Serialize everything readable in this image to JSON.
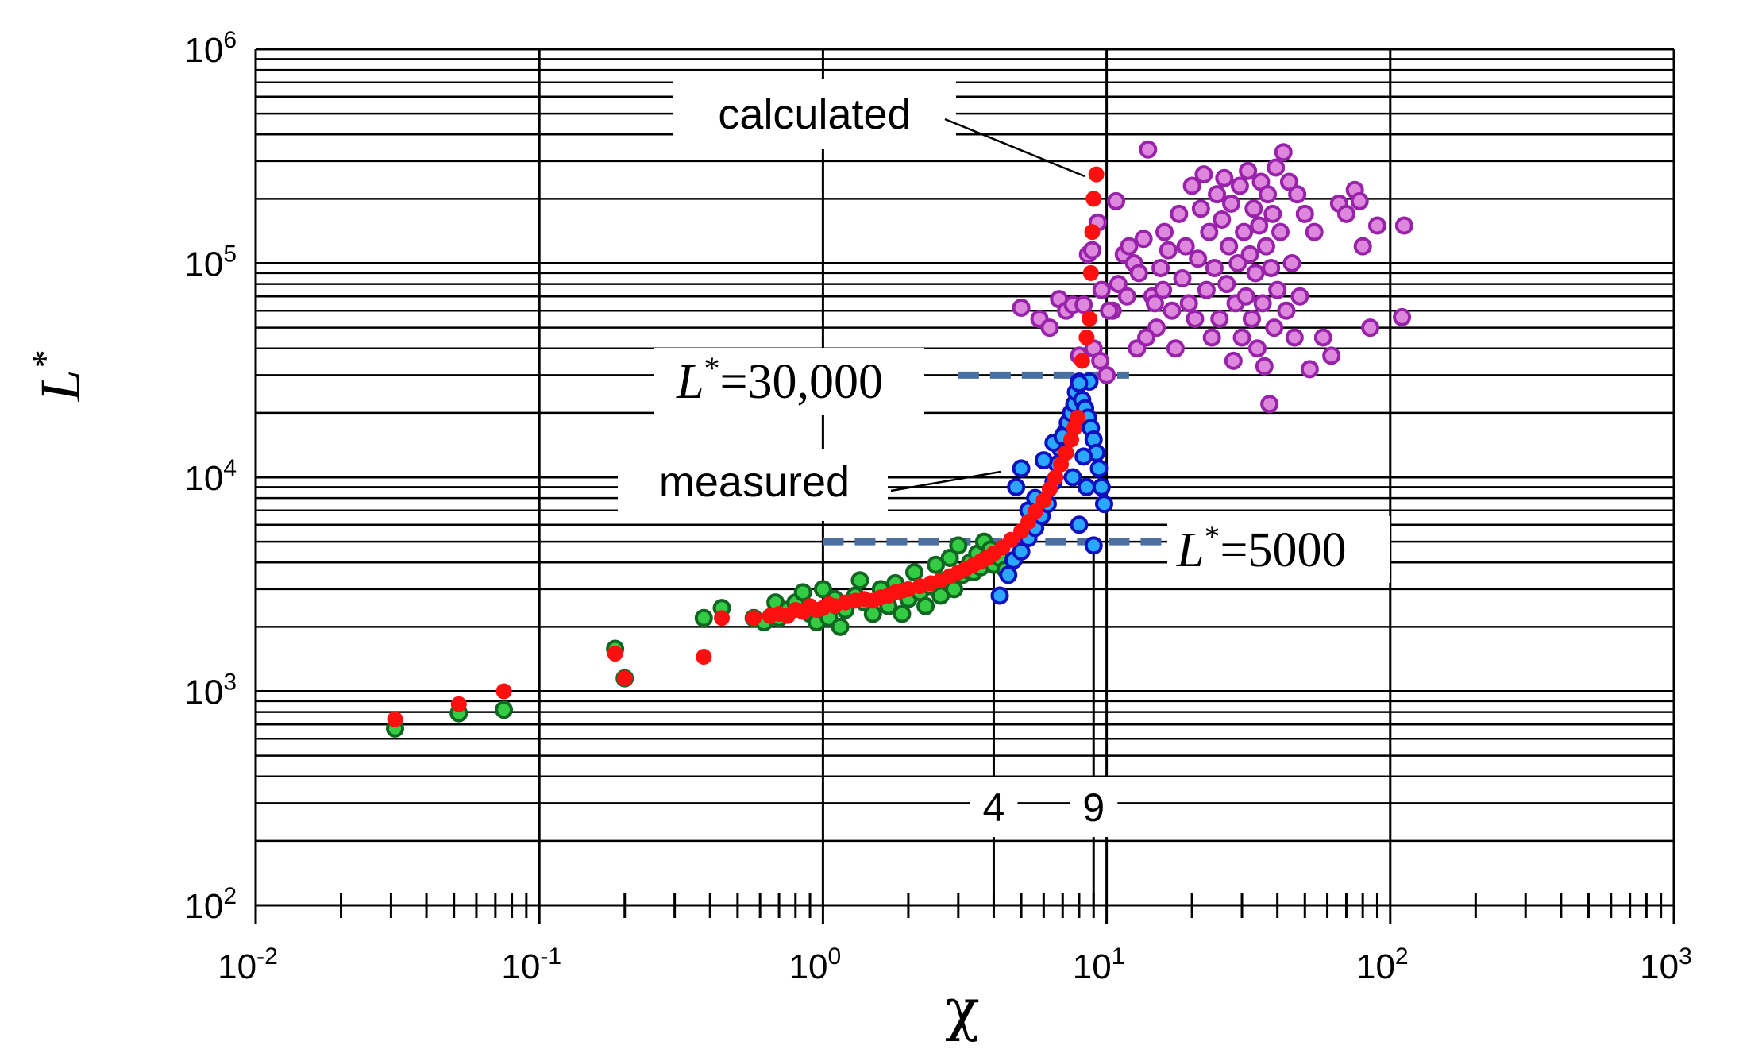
{
  "chart_data": {
    "type": "scatter",
    "x_scale": "log",
    "y_scale": "log",
    "xlim": [
      0.01,
      1000
    ],
    "ylim": [
      100,
      1000000
    ],
    "xlabel": "χ",
    "ylabel": "L",
    "ylabel_sup": "*",
    "x_ticks": [
      {
        "base": "10",
        "exp": "-2",
        "value": 0.01
      },
      {
        "base": "10",
        "exp": "-1",
        "value": 0.1
      },
      {
        "base": "10",
        "exp": "0",
        "value": 1
      },
      {
        "base": "10",
        "exp": "1",
        "value": 10
      },
      {
        "base": "10",
        "exp": "2",
        "value": 100
      },
      {
        "base": "10",
        "exp": "3",
        "value": 1000
      }
    ],
    "y_ticks": [
      {
        "base": "10",
        "exp": "2",
        "value": 100
      },
      {
        "base": "10",
        "exp": "3",
        "value": 1000
      },
      {
        "base": "10",
        "exp": "4",
        "value": 10000
      },
      {
        "base": "10",
        "exp": "5",
        "value": 100000
      },
      {
        "base": "10",
        "exp": "6",
        "value": 1000000
      }
    ],
    "vertical_markers": [
      {
        "label": "4",
        "x": 4
      },
      {
        "label": "9",
        "x": 9
      }
    ],
    "reference_lines": [
      {
        "name": "L*=30,000",
        "y": 30000,
        "x_range": [
          3,
          12
        ],
        "color": "#4a6fa0"
      },
      {
        "name": "L*=5000",
        "y": 5000,
        "x_range": [
          1.0,
          16
        ],
        "color": "#4a6fa0"
      }
    ],
    "annotations": {
      "calculated": "calculated",
      "measured": "measured",
      "ref_30000_letter": "L",
      "ref_30000_sup": "*",
      "ref_30000_value": "=30,000",
      "ref_5000_letter": "L",
      "ref_5000_sup": "*",
      "ref_5000_value": "=5000"
    },
    "series": [
      {
        "name": "green",
        "fill": "#33cc44",
        "stroke": "#116622",
        "points": [
          [
            0.031,
            670
          ],
          [
            0.052,
            790
          ],
          [
            0.075,
            820
          ],
          [
            0.185,
            1580
          ],
          [
            0.2,
            1150
          ],
          [
            0.38,
            2200
          ],
          [
            0.44,
            2450
          ],
          [
            0.57,
            2200
          ],
          [
            0.62,
            2100
          ],
          [
            0.68,
            2600
          ],
          [
            0.7,
            2200
          ],
          [
            0.75,
            2400
          ],
          [
            0.8,
            2600
          ],
          [
            0.85,
            2900
          ],
          [
            0.9,
            2300
          ],
          [
            0.95,
            2100
          ],
          [
            1.0,
            2400
          ],
          [
            1.0,
            3000
          ],
          [
            1.05,
            2200
          ],
          [
            1.1,
            2700
          ],
          [
            1.15,
            2000
          ],
          [
            1.2,
            2400
          ],
          [
            1.3,
            2800
          ],
          [
            1.35,
            3300
          ],
          [
            1.4,
            2600
          ],
          [
            1.5,
            2300
          ],
          [
            1.6,
            3000
          ],
          [
            1.7,
            2500
          ],
          [
            1.8,
            3200
          ],
          [
            1.9,
            2300
          ],
          [
            2.0,
            2700
          ],
          [
            2.1,
            3600
          ],
          [
            2.2,
            2900
          ],
          [
            2.3,
            2500
          ],
          [
            2.4,
            3100
          ],
          [
            2.5,
            3900
          ],
          [
            2.6,
            2800
          ],
          [
            2.7,
            3300
          ],
          [
            2.8,
            4200
          ],
          [
            2.9,
            3000
          ],
          [
            3.0,
            4800
          ],
          [
            3.1,
            3500
          ],
          [
            3.2,
            3700
          ],
          [
            3.3,
            4000
          ],
          [
            3.4,
            3600
          ],
          [
            3.5,
            4400
          ],
          [
            3.6,
            3800
          ],
          [
            3.7,
            5000
          ],
          [
            3.8,
            4200
          ],
          [
            3.9,
            4600
          ],
          [
            4.0,
            3900
          ],
          [
            4.2,
            4200
          ],
          [
            4.4,
            3700
          ]
        ]
      },
      {
        "name": "red",
        "fill": "#ff1010",
        "stroke": "#ff1010",
        "points": [
          [
            0.031,
            740
          ],
          [
            0.052,
            870
          ],
          [
            0.075,
            1000
          ],
          [
            0.185,
            1500
          ],
          [
            0.2,
            1150
          ],
          [
            0.38,
            1450
          ],
          [
            0.44,
            2200
          ],
          [
            0.57,
            2200
          ],
          [
            0.65,
            2250
          ],
          [
            0.7,
            2300
          ],
          [
            0.75,
            2250
          ],
          [
            0.8,
            2400
          ],
          [
            0.85,
            2350
          ],
          [
            0.9,
            2500
          ],
          [
            0.95,
            2400
          ],
          [
            1.0,
            2450
          ],
          [
            1.05,
            2550
          ],
          [
            1.1,
            2500
          ],
          [
            1.2,
            2600
          ],
          [
            1.3,
            2650
          ],
          [
            1.4,
            2700
          ],
          [
            1.5,
            2650
          ],
          [
            1.6,
            2750
          ],
          [
            1.7,
            2800
          ],
          [
            1.8,
            2900
          ],
          [
            1.9,
            2950
          ],
          [
            2.0,
            3000
          ],
          [
            2.2,
            3100
          ],
          [
            2.4,
            3200
          ],
          [
            2.6,
            3300
          ],
          [
            2.8,
            3450
          ],
          [
            3.0,
            3600
          ],
          [
            3.2,
            3750
          ],
          [
            3.4,
            3900
          ],
          [
            3.6,
            4050
          ],
          [
            3.8,
            4200
          ],
          [
            4.0,
            4400
          ],
          [
            4.3,
            4700
          ],
          [
            4.6,
            5100
          ],
          [
            5.0,
            5600
          ],
          [
            5.3,
            6200
          ],
          [
            5.6,
            6900
          ],
          [
            6.0,
            7800
          ],
          [
            6.3,
            8800
          ],
          [
            6.6,
            10000
          ],
          [
            6.9,
            11500
          ],
          [
            7.2,
            13000
          ],
          [
            7.5,
            15000
          ],
          [
            7.7,
            17000
          ],
          [
            7.9,
            19000
          ],
          [
            8.2,
            35000
          ],
          [
            8.5,
            45000
          ],
          [
            8.7,
            55000
          ],
          [
            8.8,
            90000
          ],
          [
            9.0,
            200000
          ],
          [
            9.2,
            260000
          ],
          [
            8.9,
            140000
          ]
        ]
      },
      {
        "name": "blue",
        "fill": "#2aa8ff",
        "stroke": "#1010c0",
        "points": [
          [
            4.2,
            2800
          ],
          [
            4.5,
            3500
          ],
          [
            4.7,
            4100
          ],
          [
            5.0,
            4500
          ],
          [
            5.3,
            5200
          ],
          [
            5.6,
            5800
          ],
          [
            4.8,
            9000
          ],
          [
            5.0,
            11000
          ],
          [
            5.3,
            7000
          ],
          [
            5.6,
            8000
          ],
          [
            5.9,
            6600
          ],
          [
            6.2,
            7500
          ],
          [
            6.5,
            9500
          ],
          [
            6.7,
            11500
          ],
          [
            6.9,
            13500
          ],
          [
            7.1,
            16000
          ],
          [
            7.3,
            18000
          ],
          [
            7.5,
            20000
          ],
          [
            7.7,
            22000
          ],
          [
            7.8,
            25000
          ],
          [
            8.0,
            28000
          ],
          [
            8.2,
            23000
          ],
          [
            8.4,
            21000
          ],
          [
            8.6,
            19000
          ],
          [
            8.8,
            17000
          ],
          [
            9.0,
            15000
          ],
          [
            9.2,
            13000
          ],
          [
            9.4,
            11000
          ],
          [
            9.6,
            9000
          ],
          [
            9.8,
            7500
          ],
          [
            8.0,
            6000
          ],
          [
            8.5,
            9000
          ],
          [
            6.0,
            12000
          ],
          [
            6.5,
            14500
          ],
          [
            7.0,
            15500
          ],
          [
            7.6,
            10000
          ],
          [
            8.3,
            12500
          ],
          [
            9.0,
            4800
          ],
          [
            8.7,
            28000
          ],
          [
            8.0,
            27500
          ]
        ]
      },
      {
        "name": "magenta",
        "fill": "#dd88dd",
        "stroke": "#9922aa",
        "points": [
          [
            9.0,
            40000
          ],
          [
            9.5,
            35000
          ],
          [
            10,
            30000
          ],
          [
            10.5,
            60000
          ],
          [
            11,
            80000
          ],
          [
            11.5,
            110000
          ],
          [
            12,
            120000
          ],
          [
            12.5,
            100000
          ],
          [
            13,
            90000
          ],
          [
            13.5,
            130000
          ],
          [
            14,
            340000
          ],
          [
            14.5,
            70000
          ],
          [
            15,
            50000
          ],
          [
            15.5,
            95000
          ],
          [
            16,
            140000
          ],
          [
            16.5,
            115000
          ],
          [
            17,
            60000
          ],
          [
            17.5,
            40000
          ],
          [
            18,
            170000
          ],
          [
            18.5,
            85000
          ],
          [
            19,
            120000
          ],
          [
            19.5,
            65000
          ],
          [
            20,
            230000
          ],
          [
            20.5,
            55000
          ],
          [
            21,
            105000
          ],
          [
            21.5,
            180000
          ],
          [
            22,
            260000
          ],
          [
            22.5,
            75000
          ],
          [
            23,
            140000
          ],
          [
            23.5,
            45000
          ],
          [
            24,
            95000
          ],
          [
            24.5,
            210000
          ],
          [
            25,
            55000
          ],
          [
            25.5,
            160000
          ],
          [
            26,
            250000
          ],
          [
            26.5,
            80000
          ],
          [
            27,
            120000
          ],
          [
            27.5,
            190000
          ],
          [
            28,
            35000
          ],
          [
            28.5,
            65000
          ],
          [
            29,
            100000
          ],
          [
            29.5,
            230000
          ],
          [
            30,
            45000
          ],
          [
            30.5,
            140000
          ],
          [
            31,
            70000
          ],
          [
            31.5,
            270000
          ],
          [
            32,
            110000
          ],
          [
            32.5,
            55000
          ],
          [
            33,
            180000
          ],
          [
            33.5,
            90000
          ],
          [
            34,
            40000
          ],
          [
            34.5,
            150000
          ],
          [
            35,
            240000
          ],
          [
            35.5,
            65000
          ],
          [
            36,
            33000
          ],
          [
            36.5,
            120000
          ],
          [
            37,
            210000
          ],
          [
            37.5,
            22000
          ],
          [
            38,
            95000
          ],
          [
            38.5,
            170000
          ],
          [
            39,
            50000
          ],
          [
            39.5,
            280000
          ],
          [
            40,
            75000
          ],
          [
            41,
            140000
          ],
          [
            42,
            330000
          ],
          [
            43,
            60000
          ],
          [
            44,
            240000
          ],
          [
            45,
            100000
          ],
          [
            46,
            45000
          ],
          [
            47,
            210000
          ],
          [
            48,
            70000
          ],
          [
            50,
            170000
          ],
          [
            52,
            32000
          ],
          [
            54,
            140000
          ],
          [
            58,
            45000
          ],
          [
            62,
            37000
          ],
          [
            66,
            190000
          ],
          [
            70,
            170000
          ],
          [
            75,
            220000
          ],
          [
            78,
            195000
          ],
          [
            80,
            120000
          ],
          [
            85,
            50000
          ],
          [
            90,
            150000
          ],
          [
            110,
            56000
          ],
          [
            112,
            150000
          ],
          [
            5.0,
            62000
          ],
          [
            5.8,
            55000
          ],
          [
            6.3,
            50000
          ],
          [
            6.8,
            68000
          ],
          [
            7.2,
            60000
          ],
          [
            7.6,
            64000
          ],
          [
            8.0,
            37000
          ],
          [
            8.3,
            64000
          ],
          [
            8.6,
            110000
          ],
          [
            8.9,
            115000
          ],
          [
            9.3,
            155000
          ],
          [
            9.6,
            75000
          ],
          [
            10.2,
            60000
          ],
          [
            10.8,
            195000
          ],
          [
            11.8,
            70000
          ],
          [
            12.8,
            40000
          ],
          [
            13.8,
            45000
          ],
          [
            14.8,
            65000
          ],
          [
            15.8,
            75000
          ]
        ]
      }
    ]
  }
}
